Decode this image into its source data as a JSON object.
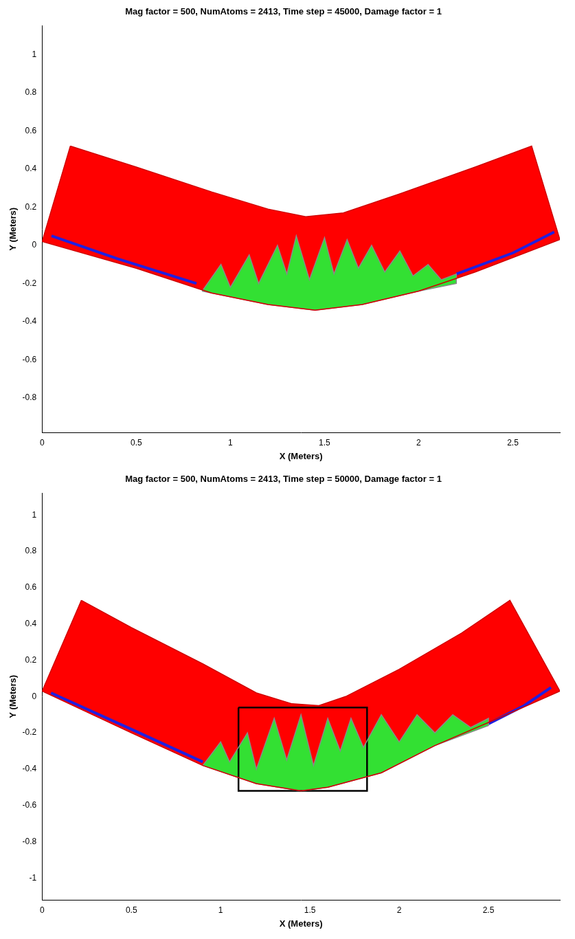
{
  "chart_data": [
    {
      "type": "scatter",
      "title": "Mag factor = 500, NumAtoms = 2413, Time step = 45000, Damage factor = 1",
      "x_label": "X (Meters)",
      "y_label": "Y (Meters)",
      "xlim": [
        0,
        2.75
      ],
      "xticks": [
        0,
        0.5,
        1,
        1.5,
        2,
        2.5
      ],
      "ylim": [
        -0.98,
        1.15
      ],
      "yticks": [
        -0.8,
        -0.6,
        -0.4,
        -0.2,
        0,
        0.2,
        0.4,
        0.6,
        0.8,
        1
      ],
      "grid": false,
      "series": [
        {
          "type": "area",
          "color": "#ff0000",
          "x": [
            0.15,
            0.5,
            0.9,
            1.2,
            1.4,
            1.6,
            1.9,
            2.3,
            2.6,
            2.75,
            2.3,
            2.0,
            1.7,
            1.45,
            1.2,
            0.9,
            0.5,
            0,
            0.15
          ],
          "y": [
            0.52,
            0.41,
            0.28,
            0.19,
            0.15,
            0.17,
            0.27,
            0.41,
            0.52,
            0.03,
            -0.14,
            -0.24,
            -0.31,
            -0.34,
            -0.31,
            -0.25,
            -0.12,
            0.02,
            0.52
          ]
        },
        {
          "type": "area",
          "color": "#33e033",
          "x": [
            0.85,
            0.95,
            1.0,
            1.1,
            1.15,
            1.25,
            1.3,
            1.35,
            1.42,
            1.5,
            1.55,
            1.62,
            1.68,
            1.75,
            1.82,
            1.9,
            1.97,
            2.05,
            2.12,
            2.2,
            2.2,
            2.0,
            1.7,
            1.45,
            1.2,
            0.95,
            0.85
          ],
          "y": [
            -0.24,
            -0.1,
            -0.22,
            -0.05,
            -0.2,
            0.0,
            -0.15,
            0.05,
            -0.18,
            0.04,
            -0.15,
            0.03,
            -0.12,
            0.0,
            -0.14,
            -0.03,
            -0.16,
            -0.1,
            -0.18,
            -0.15,
            -0.2,
            -0.24,
            -0.31,
            -0.34,
            -0.31,
            -0.26,
            -0.24
          ]
        },
        {
          "type": "line",
          "color": "#2020e0",
          "x": [
            0.05,
            0.4,
            0.82
          ],
          "y": [
            0.05,
            -0.07,
            -0.2
          ]
        },
        {
          "type": "line",
          "color": "#2020e0",
          "x": [
            2.2,
            2.5,
            2.72
          ],
          "y": [
            -0.15,
            -0.04,
            0.07
          ]
        }
      ]
    },
    {
      "type": "scatter",
      "title": "Mag factor = 500, NumAtoms = 2413, Time step = 50000, Damage factor = 1",
      "x_label": "X (Meters)",
      "y_label": "Y (Meters)",
      "xlim": [
        0,
        2.9
      ],
      "xticks": [
        0,
        0.5,
        1,
        1.5,
        2,
        2.5
      ],
      "ylim": [
        -1.12,
        1.12
      ],
      "yticks": [
        -1,
        -0.8,
        -0.6,
        -0.4,
        -0.2,
        0,
        0.2,
        0.4,
        0.6,
        0.8,
        1
      ],
      "grid": false,
      "series": [
        {
          "type": "area",
          "color": "#ff0000",
          "x": [
            0.22,
            0.5,
            0.9,
            1.2,
            1.4,
            1.55,
            1.7,
            2.0,
            2.35,
            2.62,
            2.9,
            2.6,
            2.2,
            1.9,
            1.6,
            1.45,
            1.2,
            0.9,
            0.5,
            0,
            0.22
          ],
          "y": [
            0.53,
            0.38,
            0.18,
            0.02,
            -0.04,
            -0.05,
            0.0,
            0.15,
            0.35,
            0.53,
            0.03,
            -0.1,
            -0.27,
            -0.42,
            -0.5,
            -0.52,
            -0.48,
            -0.38,
            -0.2,
            0.03,
            0.53
          ]
        },
        {
          "type": "area",
          "color": "#33e033",
          "x": [
            0.9,
            1.0,
            1.05,
            1.15,
            1.2,
            1.3,
            1.37,
            1.45,
            1.52,
            1.6,
            1.67,
            1.73,
            1.8,
            1.9,
            2.0,
            2.1,
            2.2,
            2.3,
            2.4,
            2.5,
            2.5,
            2.2,
            1.9,
            1.6,
            1.45,
            1.2,
            0.9
          ],
          "y": [
            -0.38,
            -0.25,
            -0.36,
            -0.2,
            -0.4,
            -0.12,
            -0.35,
            -0.1,
            -0.38,
            -0.12,
            -0.3,
            -0.12,
            -0.28,
            -0.1,
            -0.25,
            -0.1,
            -0.2,
            -0.1,
            -0.17,
            -0.12,
            -0.16,
            -0.27,
            -0.42,
            -0.5,
            -0.52,
            -0.48,
            -0.38
          ]
        },
        {
          "type": "line",
          "color": "#2020e0",
          "x": [
            0.05,
            0.5,
            0.9
          ],
          "y": [
            0.02,
            -0.18,
            -0.36
          ]
        },
        {
          "type": "line",
          "color": "#2020e0",
          "x": [
            2.5,
            2.7,
            2.85
          ],
          "y": [
            -0.15,
            -0.05,
            0.05
          ]
        },
        {
          "type": "line",
          "color": "#000000",
          "x": [
            1.1,
            1.82,
            1.82,
            1.1,
            1.1
          ],
          "y": [
            -0.06,
            -0.06,
            -0.52,
            -0.52,
            -0.06
          ]
        }
      ]
    }
  ]
}
